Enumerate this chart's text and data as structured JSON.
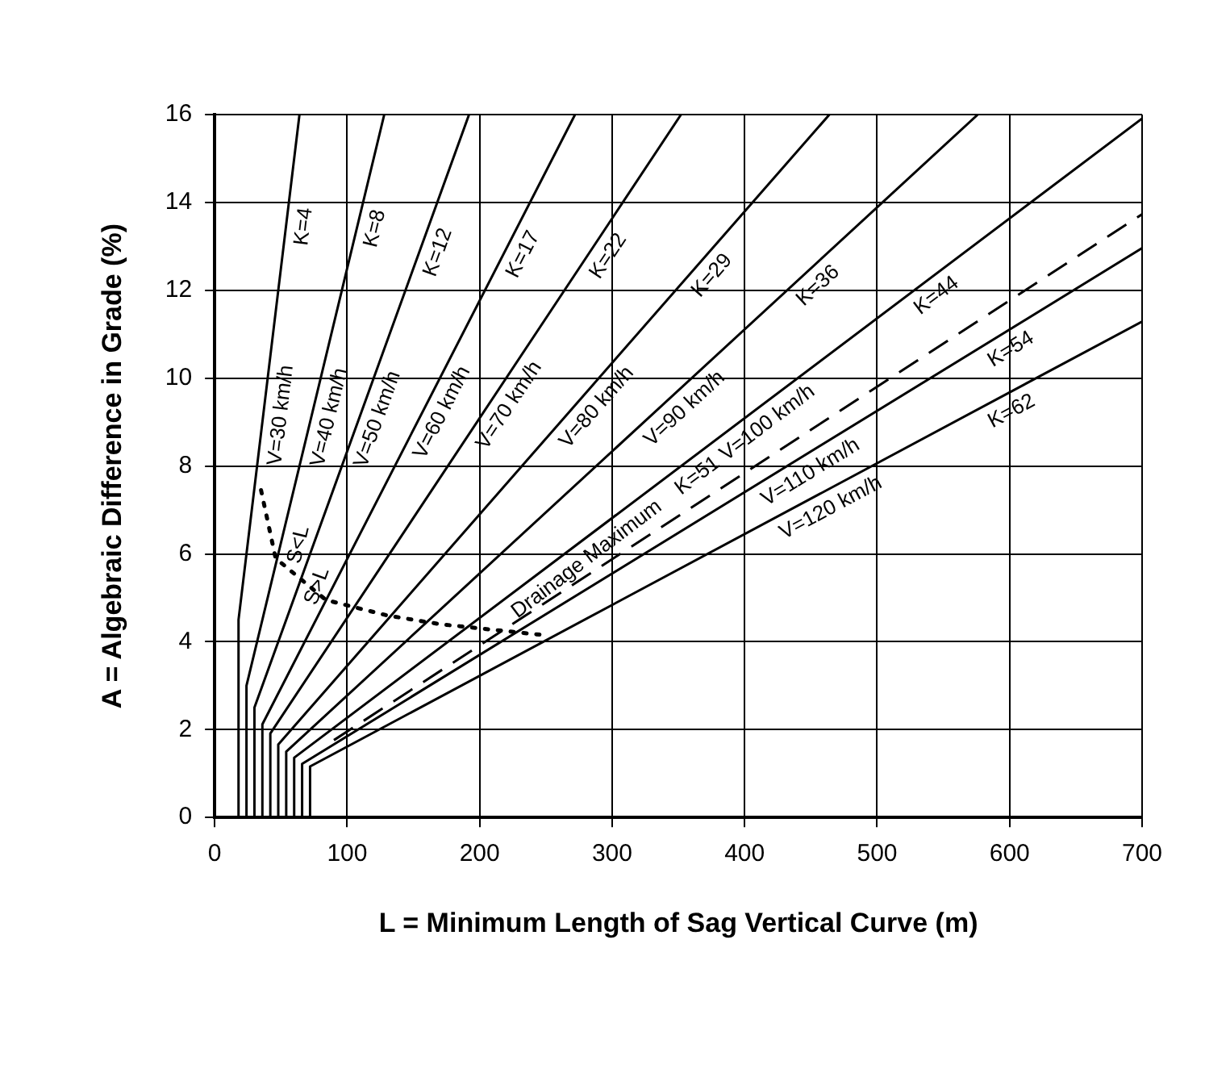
{
  "chart_data": {
    "type": "line",
    "xlabel": "L = Minimum Length of Sag Vertical Curve (m)",
    "ylabel": "A = Algebraic Difference in Grade (%)",
    "xlim": [
      0,
      700
    ],
    "xticks": [
      0,
      100,
      200,
      300,
      400,
      500,
      600,
      700
    ],
    "ylim": [
      0,
      16
    ],
    "yticks": [
      0,
      2,
      4,
      6,
      8,
      10,
      12,
      14,
      16
    ],
    "grid": true,
    "legend": false,
    "marker": "none",
    "series": [
      {
        "color": "#000000",
        "line_style": "solid",
        "x": [
          18,
          18,
          64
        ],
        "values": [
          0,
          4.5,
          16
        ]
      },
      {
        "color": "#000000",
        "line_style": "solid",
        "x": [
          24,
          24,
          128
        ],
        "values": [
          0,
          3,
          16
        ]
      },
      {
        "color": "#000000",
        "line_style": "solid",
        "x": [
          30,
          30,
          192
        ],
        "values": [
          0,
          2.5,
          16
        ]
      },
      {
        "color": "#000000",
        "line_style": "solid",
        "x": [
          36,
          36,
          272
        ],
        "values": [
          0,
          2.12,
          16
        ]
      },
      {
        "color": "#000000",
        "line_style": "solid",
        "x": [
          42,
          42,
          352
        ],
        "values": [
          0,
          1.91,
          16
        ]
      },
      {
        "color": "#000000",
        "line_style": "solid",
        "x": [
          48,
          48,
          464
        ],
        "values": [
          0,
          1.66,
          16
        ]
      },
      {
        "color": "#000000",
        "line_style": "solid",
        "x": [
          54,
          54,
          576
        ],
        "values": [
          0,
          1.5,
          16
        ]
      },
      {
        "color": "#000000",
        "line_style": "solid",
        "x": [
          60,
          60,
          700
        ],
        "values": [
          0,
          1.36,
          15.91
        ]
      },
      {
        "color": "#000000",
        "line_style": "solid",
        "x": [
          66,
          66,
          700
        ],
        "values": [
          0,
          1.22,
          12.96
        ]
      },
      {
        "color": "#000000",
        "line_style": "solid",
        "x": [
          72,
          72,
          700
        ],
        "values": [
          0,
          1.16,
          11.29
        ]
      },
      {
        "color": "#000000",
        "line_style": "dashed",
        "x": [
          90,
          700
        ],
        "values": [
          1.76,
          13.73
        ]
      },
      {
        "color": "#000000",
        "line_style": "dotted",
        "x": [
          35,
          46,
          84,
          130,
          170,
          249
        ],
        "values": [
          7.45,
          5.9,
          4.95,
          4.6,
          4.4,
          4.15
        ]
      }
    ],
    "annotations": [
      {
        "text": "K=4",
        "x": 54,
        "y": 13.5
      },
      {
        "text": "K=8",
        "x": 108,
        "y": 13.5
      },
      {
        "text": "K=12",
        "x": 156,
        "y": 13
      },
      {
        "text": "K=17",
        "x": 221,
        "y": 13
      },
      {
        "text": "K=22",
        "x": 286,
        "y": 13
      },
      {
        "text": "K=29",
        "x": 365.4,
        "y": 12.6
      },
      {
        "text": "K=36",
        "x": 446.4,
        "y": 12.4
      },
      {
        "text": "K=44",
        "x": 536.8,
        "y": 12.2
      },
      {
        "text": "K=54",
        "x": 594,
        "y": 11
      },
      {
        "text": "K=62",
        "x": 595.2,
        "y": 9.6
      },
      {
        "text": "V=30 km/h",
        "x": 36.8,
        "y": 9.2
      },
      {
        "text": "V=40 km/h",
        "x": 73.6,
        "y": 9.2
      },
      {
        "text": "V=50 km/h",
        "x": 110.4,
        "y": 9.2
      },
      {
        "text": "V=60 km/h",
        "x": 159.8,
        "y": 9.4
      },
      {
        "text": "V=70 km/h",
        "x": 211.2,
        "y": 9.6
      },
      {
        "text": "V=80 km/h",
        "x": 278.4,
        "y": 9.6
      },
      {
        "text": "V=90 km/h",
        "x": 345.6,
        "y": 9.6
      },
      {
        "text": "V=100 km/h",
        "x": 409.2,
        "y": 9.3
      },
      {
        "text": "V=110 km/h",
        "x": 442.8,
        "y": 8.2
      },
      {
        "text": "V=120 km/h",
        "x": 458.8,
        "y": 7.4
      },
      {
        "text": "Drainage Maximum",
        "x": 272.8,
        "y": 6.2
      },
      {
        "text": "K=51",
        "x": 356.4,
        "y": 8.1
      },
      {
        "text": "S<L",
        "x": 50.4,
        "y": 6.3
      },
      {
        "text": "S>L",
        "x": 64.8,
        "y": 5.4
      }
    ]
  }
}
